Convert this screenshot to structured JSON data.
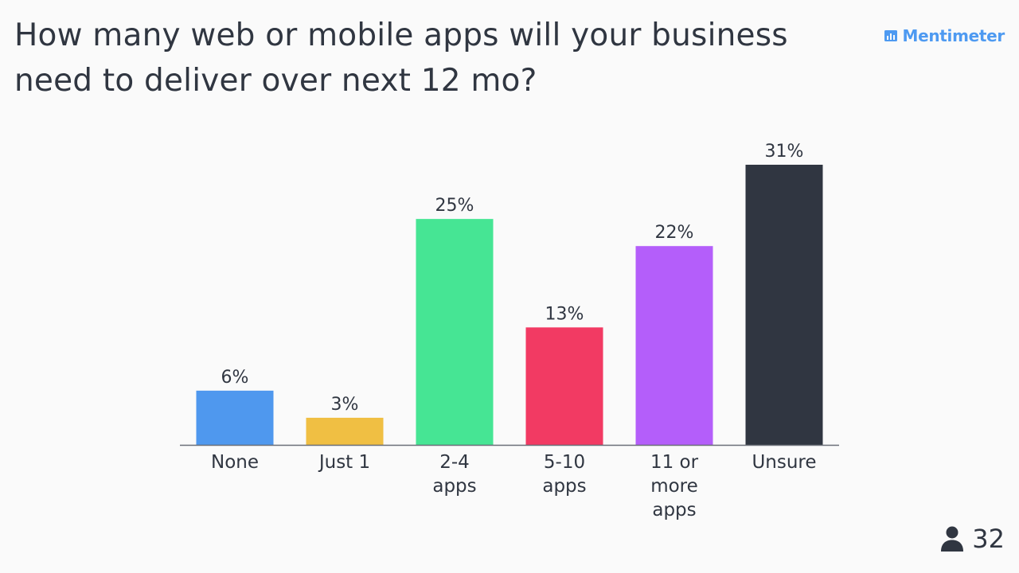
{
  "header": {
    "title": "How many web or mobile apps will your business need to deliver over next 12 mo?"
  },
  "brand": {
    "name": "Mentimeter",
    "icon": "bar-chart-logo-icon",
    "color": "#4e9af1"
  },
  "footer": {
    "participants_icon": "person-icon",
    "participant_count": "32"
  },
  "chart_data": {
    "type": "bar",
    "title": "How many web or mobile apps will your business need to deliver over next 12 mo?",
    "xlabel": "",
    "ylabel": "",
    "ylim": [
      0,
      31
    ],
    "grid": false,
    "categories": [
      [
        "None"
      ],
      [
        "Just 1"
      ],
      [
        "2-4",
        "apps"
      ],
      [
        "5-10",
        "apps"
      ],
      [
        "11 or",
        "more",
        "apps"
      ],
      [
        "Unsure"
      ]
    ],
    "values": [
      6,
      3,
      25,
      13,
      22,
      31
    ],
    "value_labels": [
      "6%",
      "3%",
      "25%",
      "13%",
      "22%",
      "31%"
    ],
    "colors": [
      "#4f98ee",
      "#f0bf43",
      "#46e594",
      "#f23a63",
      "#b45efa",
      "#303641"
    ]
  }
}
